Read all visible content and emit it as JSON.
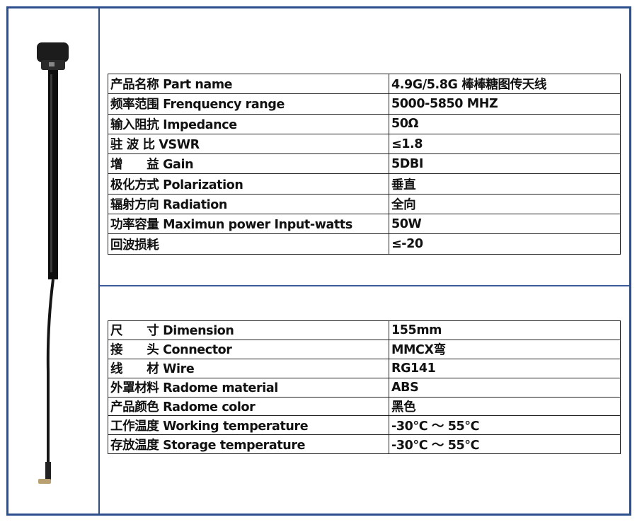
{
  "table_top": {
    "rows": [
      {
        "label": "产品名称 Part name",
        "value": "4.9G/5.8G 棒棒糖图传天线"
      },
      {
        "label": "频率范围 Frenquency range",
        "value": "5000-5850 MHZ"
      },
      {
        "label": "输入阻抗 Impedance",
        "value": "50Ω"
      },
      {
        "label": "驻 波 比 VSWR",
        "value": "≤1.8"
      },
      {
        "label": "增　　益 Gain",
        "value": "5DBI"
      },
      {
        "label": "极化方式 Polarization",
        "value": "垂直"
      },
      {
        "label": "辐射方向 Radiation",
        "value": "全向"
      },
      {
        "label": "功率容量 Maximun power Input-watts",
        "value": "50W"
      },
      {
        "label": "回波损耗",
        "value": "≤-20"
      }
    ]
  },
  "table_bottom": {
    "rows": [
      {
        "label": "尺　　寸 Dimension",
        "value": "155mm"
      },
      {
        "label": "接　　头 Connector",
        "value": "MMCX弯"
      },
      {
        "label": "线　　材 Wire",
        "value": "RG141"
      },
      {
        "label": "外罩材料 Radome material",
        "value": "ABS"
      },
      {
        "label": "产品颜色 Radome color",
        "value": "黑色"
      },
      {
        "label": "工作温度 Working temperature",
        "value": "-30℃ ～ 55℃"
      },
      {
        "label": "存放温度 Storage temperature",
        "value": "-30℃ ～ 55℃"
      }
    ]
  },
  "colors": {
    "frame": "#2d4e8c",
    "antenna": "#111111",
    "connector": "#b8a070"
  }
}
